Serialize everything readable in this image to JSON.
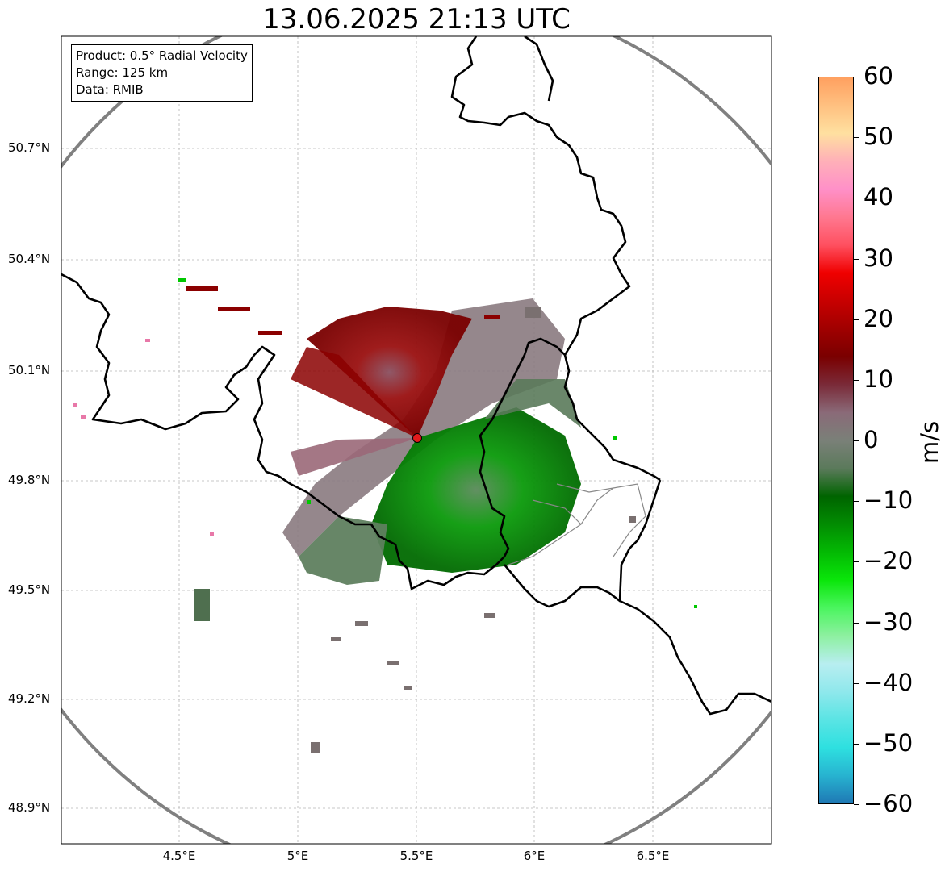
{
  "title": "13.06.2025 21:13 UTC",
  "info": {
    "product": "Product: 0.5° Radial Velocity",
    "range": "Range: 125 km",
    "data": "Data: RMIB"
  },
  "axes": {
    "lat_ticks": [
      "50.7°N",
      "50.4°N",
      "50.1°N",
      "49.8°N",
      "49.5°N",
      "49.2°N",
      "48.9°N"
    ],
    "lon_ticks": [
      "4.5°E",
      "5°E",
      "5.5°E",
      "6°E",
      "6.5°E"
    ]
  },
  "radar_site": {
    "lon": 5.5,
    "lat": 49.91,
    "color": "#e31a1c"
  },
  "colorbar": {
    "label": "m/s",
    "ticks": [
      "60",
      "50",
      "40",
      "30",
      "20",
      "10",
      "0",
      "−10",
      "−20",
      "−30",
      "−40",
      "−50",
      "−60"
    ],
    "min": -60,
    "max": 60,
    "stops": [
      "#1f78b4",
      "#27b3d0",
      "#2ee0e0",
      "#5ae4e4",
      "#8fe8ec",
      "#b8eef0",
      "#8df0a0",
      "#4bf55f",
      "#0ae60a",
      "#03b903",
      "#028c02",
      "#006400",
      "#5b7a5b",
      "#7a8078",
      "#8a6a78",
      "#7a2a38",
      "#7a0000",
      "#a00000",
      "#c80000",
      "#f00000",
      "#ff5060",
      "#ff7890",
      "#ff90c8",
      "#ffb0b8",
      "#ffe0a0",
      "#ffc080",
      "#ffa060"
    ]
  },
  "colors": {
    "border": "#000000",
    "range_ring": "#808080",
    "grid": "#b0b0b0",
    "inbound": "#008c00",
    "outbound": "#8b0000",
    "near_zero": "#7a8a70"
  }
}
